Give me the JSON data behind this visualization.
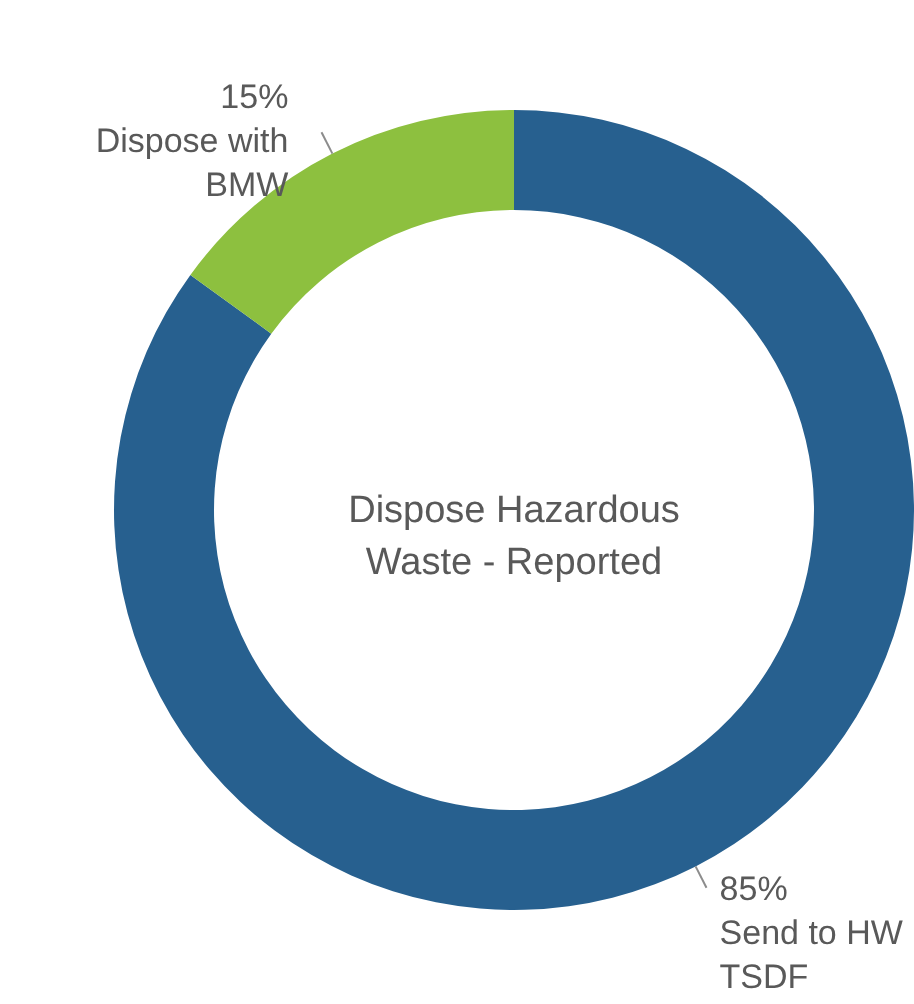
{
  "chart_data": {
    "type": "donut",
    "title": "Dispose Hazardous Waste - Reported",
    "categories": [
      "Send to HW TSDF",
      "Dispose with BMW"
    ],
    "values": [
      85,
      15
    ],
    "colors": [
      "#27608f",
      "#8dc03f"
    ],
    "value_labels": [
      "85%",
      "15%"
    ]
  }
}
